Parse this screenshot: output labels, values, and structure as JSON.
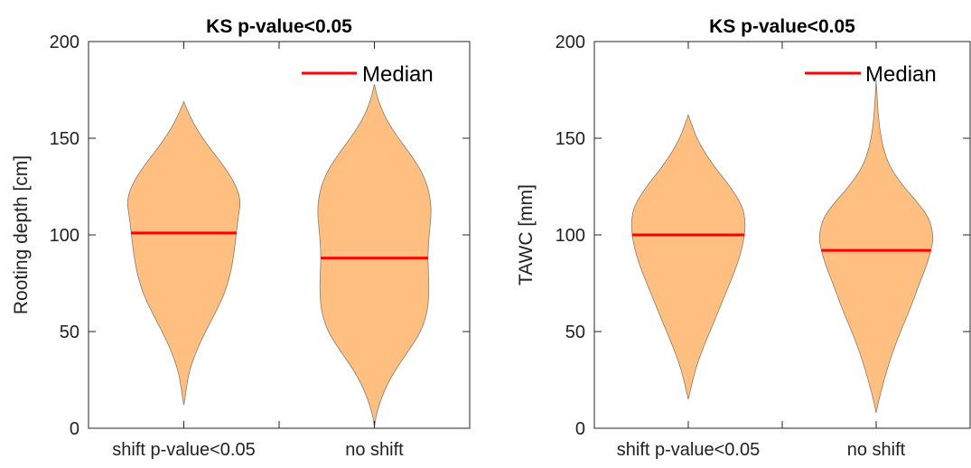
{
  "chart_data": [
    {
      "type": "violin",
      "title": "KS p-value<0.05",
      "xlabel": "",
      "ylabel": "Rooting depth [cm]",
      "ylim": [
        0,
        200
      ],
      "yticks": [
        0,
        50,
        100,
        150,
        200
      ],
      "categories": [
        "shift p-value<0.05",
        "no shift"
      ],
      "legend": {
        "label": "Median",
        "position": "top-right",
        "color": "#ff0000"
      },
      "fill_color": "#ffbf80",
      "median_color": "#ff0000",
      "grid": false,
      "violins": [
        {
          "category": "shift p-value<0.05",
          "median": 101,
          "range": [
            12,
            169
          ],
          "density_profile": [
            [
              12,
              0.0
            ],
            [
              15,
              0.02
            ],
            [
              20,
              0.04
            ],
            [
              30,
              0.1
            ],
            [
              40,
              0.22
            ],
            [
              50,
              0.38
            ],
            [
              60,
              0.56
            ],
            [
              70,
              0.72
            ],
            [
              80,
              0.82
            ],
            [
              90,
              0.88
            ],
            [
              100,
              0.92
            ],
            [
              110,
              0.96
            ],
            [
              117,
              1.0
            ],
            [
              125,
              0.93
            ],
            [
              135,
              0.72
            ],
            [
              145,
              0.45
            ],
            [
              155,
              0.22
            ],
            [
              162,
              0.1
            ],
            [
              166,
              0.04
            ],
            [
              169,
              0.0
            ]
          ]
        },
        {
          "category": "no shift",
          "median": 88,
          "range": [
            0,
            178
          ],
          "density_profile": [
            [
              0,
              0.0
            ],
            [
              5,
              0.02
            ],
            [
              10,
              0.06
            ],
            [
              20,
              0.18
            ],
            [
              30,
              0.36
            ],
            [
              40,
              0.6
            ],
            [
              50,
              0.82
            ],
            [
              60,
              0.93
            ],
            [
              70,
              0.96
            ],
            [
              80,
              0.95
            ],
            [
              90,
              0.94
            ],
            [
              100,
              0.96
            ],
            [
              110,
              1.0
            ],
            [
              120,
              0.98
            ],
            [
              130,
              0.88
            ],
            [
              140,
              0.68
            ],
            [
              150,
              0.42
            ],
            [
              160,
              0.2
            ],
            [
              170,
              0.06
            ],
            [
              178,
              0.0
            ]
          ]
        }
      ]
    },
    {
      "type": "violin",
      "title": "KS p-value<0.05",
      "xlabel": "",
      "ylabel": "TAWC [mm]",
      "ylim": [
        0,
        200
      ],
      "yticks": [
        0,
        50,
        100,
        150,
        200
      ],
      "categories": [
        "shift p-value<0.05",
        "no shift"
      ],
      "legend": {
        "label": "Median",
        "position": "top-right",
        "color": "#ff0000"
      },
      "fill_color": "#ffbf80",
      "median_color": "#ff0000",
      "grid": false,
      "violins": [
        {
          "category": "shift p-value<0.05",
          "median": 100,
          "range": [
            15,
            162
          ],
          "density_profile": [
            [
              15,
              0.0
            ],
            [
              20,
              0.04
            ],
            [
              30,
              0.12
            ],
            [
              40,
              0.24
            ],
            [
              50,
              0.38
            ],
            [
              60,
              0.52
            ],
            [
              70,
              0.66
            ],
            [
              80,
              0.8
            ],
            [
              90,
              0.92
            ],
            [
              100,
              0.99
            ],
            [
              108,
              1.0
            ],
            [
              115,
              0.95
            ],
            [
              125,
              0.74
            ],
            [
              135,
              0.46
            ],
            [
              145,
              0.24
            ],
            [
              152,
              0.12
            ],
            [
              158,
              0.05
            ],
            [
              162,
              0.0
            ]
          ]
        },
        {
          "category": "no shift",
          "median": 92,
          "range": [
            8,
            180
          ],
          "density_profile": [
            [
              8,
              0.0
            ],
            [
              15,
              0.05
            ],
            [
              25,
              0.14
            ],
            [
              35,
              0.24
            ],
            [
              45,
              0.36
            ],
            [
              55,
              0.5
            ],
            [
              65,
              0.64
            ],
            [
              75,
              0.76
            ],
            [
              85,
              0.9
            ],
            [
              95,
              0.99
            ],
            [
              100,
              1.0
            ],
            [
              108,
              0.94
            ],
            [
              115,
              0.78
            ],
            [
              125,
              0.48
            ],
            [
              135,
              0.24
            ],
            [
              145,
              0.12
            ],
            [
              155,
              0.06
            ],
            [
              165,
              0.03
            ],
            [
              180,
              0.0
            ]
          ]
        }
      ]
    }
  ]
}
